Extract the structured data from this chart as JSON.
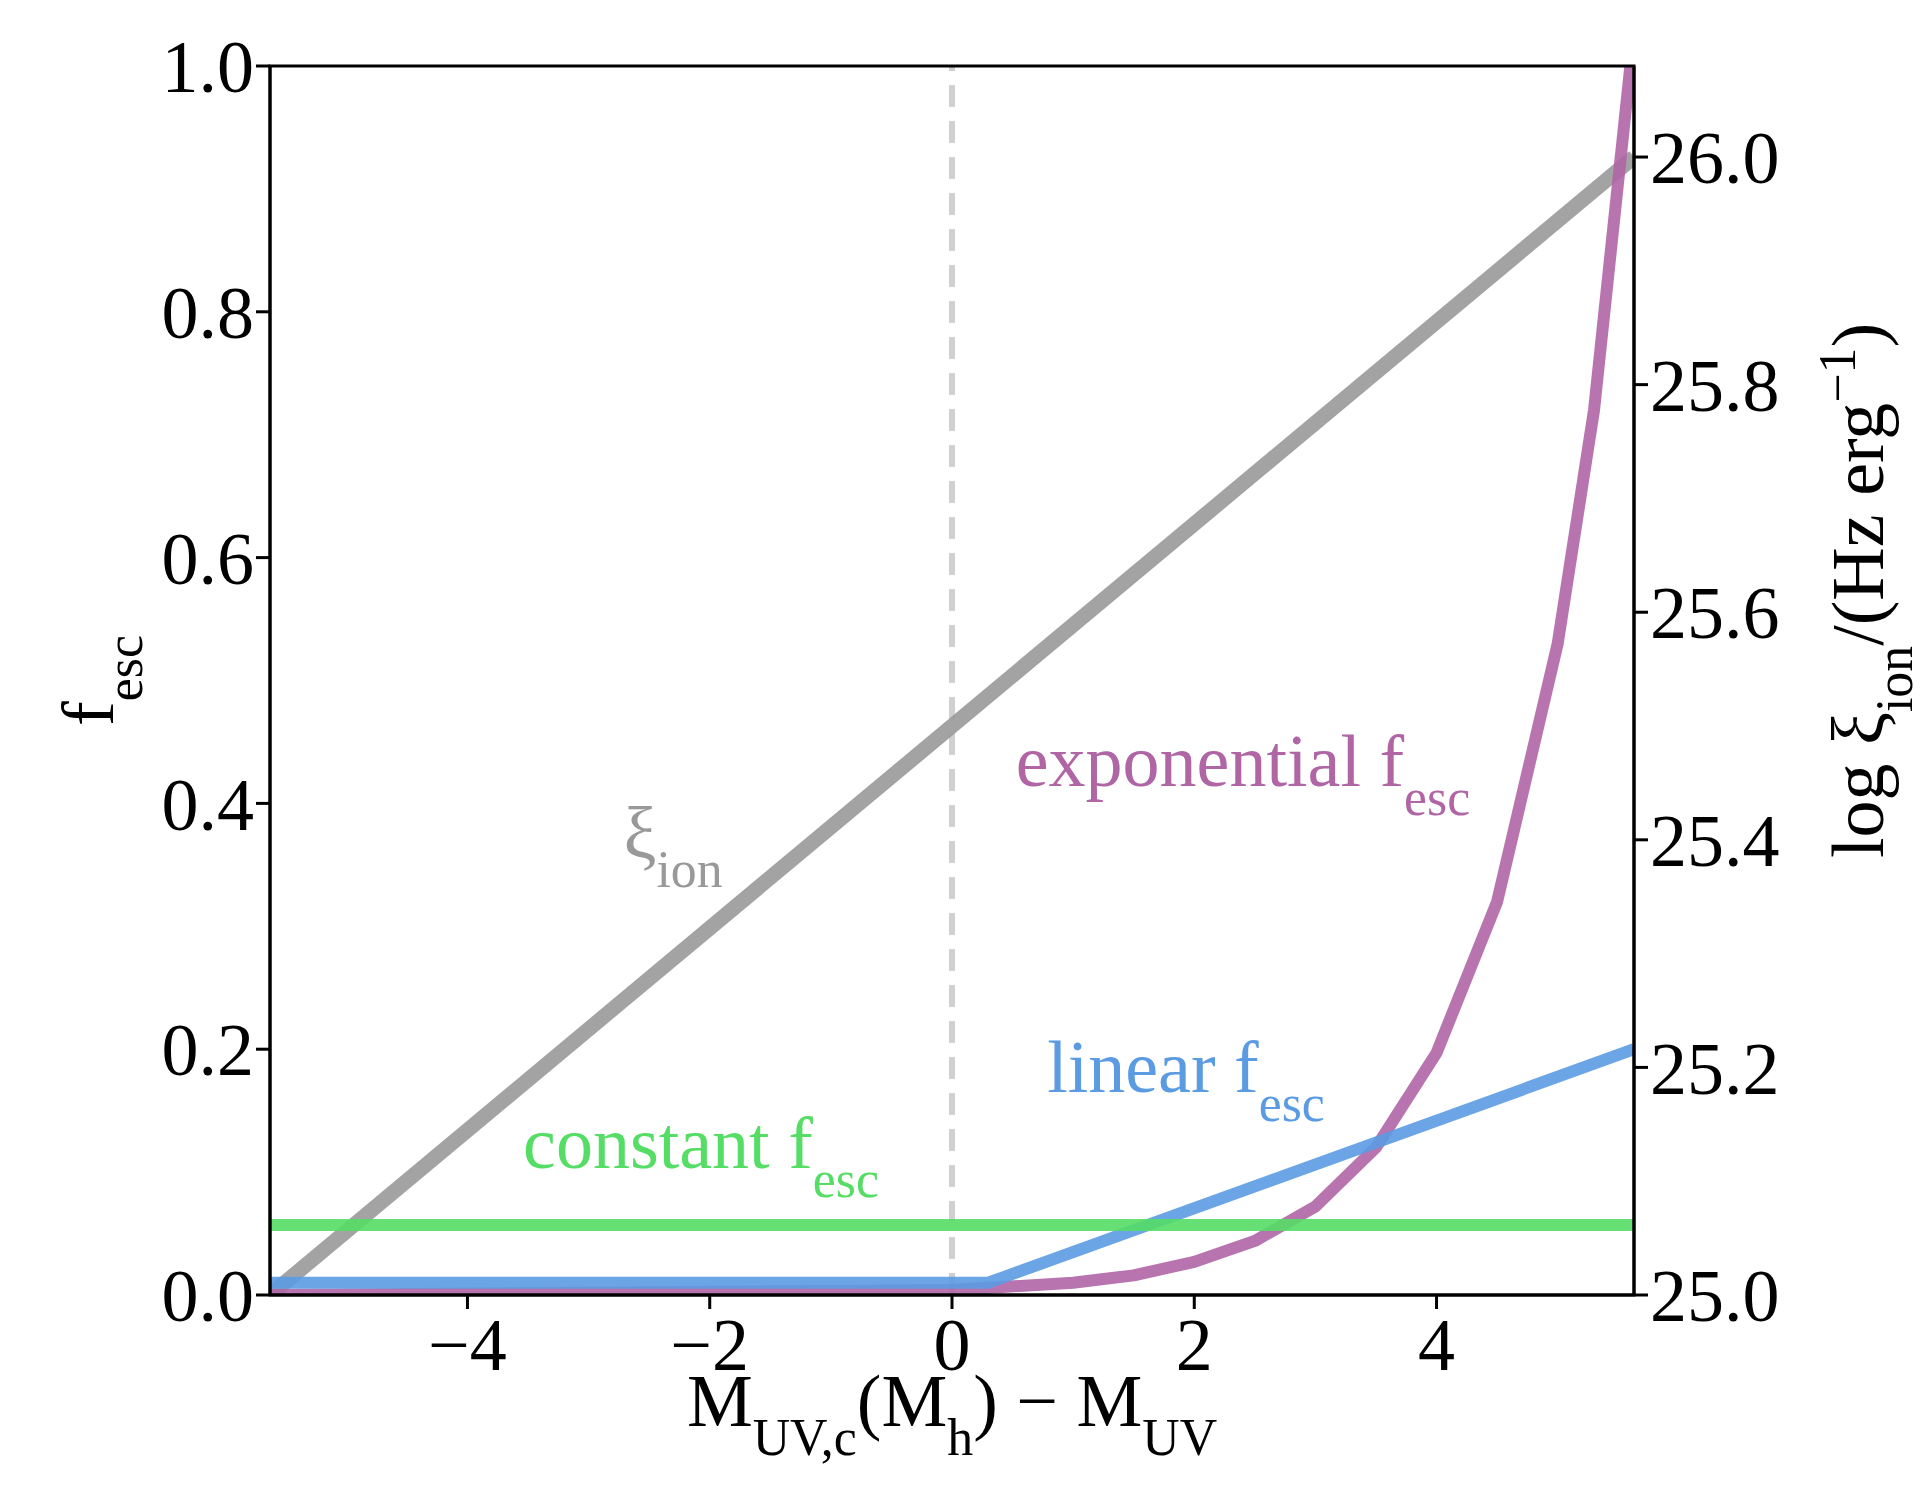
{
  "chart_data": {
    "type": "line",
    "xlabel": "M$_{UV,c}$(M$_{h}$) − M$_{UV}$",
    "ylabel": "f$_{esc}$",
    "y2label": "log ξ$_{ion}$/(Hz erg$^{−1}$)",
    "xlim": [
      -5.63,
      5.63
    ],
    "xticks": [
      {
        "value": -4,
        "label": "−4"
      },
      {
        "value": -2,
        "label": "−2"
      },
      0,
      2,
      4
    ],
    "ylim": [
      0,
      1
    ],
    "yticks": [
      {
        "value": 0,
        "label": "0.0"
      },
      {
        "value": 0.2,
        "label": "0.2"
      },
      {
        "value": 0.4,
        "label": "0.4"
      },
      {
        "value": 0.6,
        "label": "0.6"
      },
      {
        "value": 0.8,
        "label": "0.8"
      },
      {
        "value": 1,
        "label": "1.0"
      }
    ],
    "y2lim": [
      25.0,
      26.08
    ],
    "y2ticks": [
      {
        "value": 25,
        "label": "25.0"
      },
      {
        "value": 25.2,
        "label": "25.2"
      },
      {
        "value": 25.4,
        "label": "25.4"
      },
      {
        "value": 25.6,
        "label": "25.6"
      },
      {
        "value": 25.8,
        "label": "25.8"
      },
      {
        "value": 26,
        "label": "26.0"
      }
    ],
    "marker": "none",
    "line_style": "solid",
    "series": [
      {
        "name": "ξ$_{ion}$",
        "color": "#999999",
        "axis": "y2",
        "x": [
          -5.63,
          5.63
        ],
        "values": [
          25.0,
          26.0
        ]
      },
      {
        "name": "exponential f$_{esc}$",
        "color": "#b065a5",
        "x": [
          -5.63,
          0,
          1,
          1.5,
          2,
          2.5,
          3,
          3.5,
          4,
          4.5,
          5,
          5.3,
          5.6
        ],
        "values": [
          0,
          0.004,
          0.01,
          0.016,
          0.027,
          0.044,
          0.072,
          0.12,
          0.197,
          0.32,
          0.53,
          0.72,
          1.0
        ]
      },
      {
        "name": "linear f$_{esc}$",
        "color": "#5b9be2",
        "x": [
          -5.63,
          0.3,
          5.63
        ],
        "values": [
          0.01,
          0.01,
          0.2
        ]
      },
      {
        "name": "constant f$_{esc}$",
        "color": "#55dd66",
        "x": [
          -5.63,
          5.63
        ],
        "values": [
          0.057,
          0.057
        ]
      }
    ],
    "ref_lines": [
      {
        "axis": "x",
        "value": 0,
        "color": "#d0d0d0",
        "line_style": "dashed"
      }
    ]
  }
}
